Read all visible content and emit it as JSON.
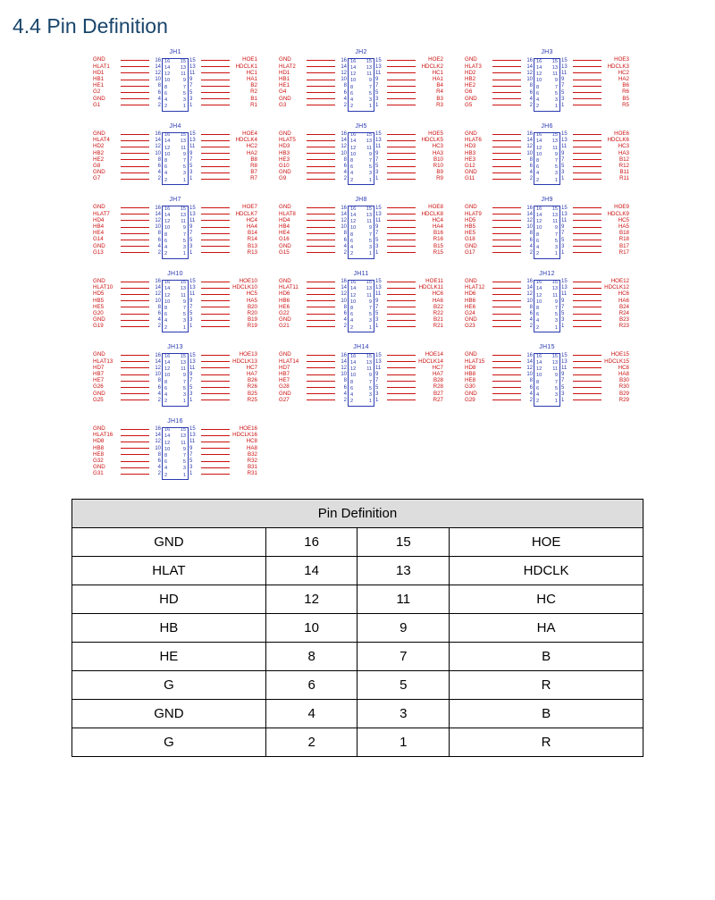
{
  "section_title": "4.4 Pin Definition",
  "left_pins_outer": [
    "16",
    "14",
    "12",
    "10",
    "8",
    "6",
    "4",
    "2"
  ],
  "right_pins_outer": [
    "15",
    "13",
    "11",
    "9",
    "7",
    "5",
    "3",
    "1"
  ],
  "chip_left": [
    "16",
    "14",
    "12",
    "10",
    "8",
    "6",
    "4",
    "2"
  ],
  "chip_right": [
    "15",
    "13",
    "11",
    "9",
    "7",
    "5",
    "3",
    "1"
  ],
  "connectors": [
    {
      "name": "JH1",
      "left": [
        "GND",
        "HLAT1",
        "HD1",
        "HB1",
        "HE1",
        "G2",
        "GND",
        "G1"
      ],
      "right": [
        "HOE1",
        "HDCLK1",
        "HC1",
        "HA1",
        "B2",
        "R2",
        "B1",
        "R1"
      ]
    },
    {
      "name": "JH2",
      "left": [
        "GND",
        "HLAT2",
        "HD1",
        "HB1",
        "HE1",
        "G4",
        "GND",
        "G3"
      ],
      "right": [
        "HOE2",
        "HDCLK2",
        "HC1",
        "HA1",
        "B4",
        "R4",
        "B3",
        "R3"
      ]
    },
    {
      "name": "JH3",
      "left": [
        "GND",
        "HLAT3",
        "HD2",
        "HB2",
        "HE2",
        "G6",
        "GND",
        "G5"
      ],
      "right": [
        "HOE3",
        "HDCLK3",
        "HC2",
        "HA2",
        "B6",
        "R6",
        "B5",
        "R5"
      ]
    },
    {
      "name": "JH4",
      "left": [
        "GND",
        "HLAT4",
        "HD2",
        "HB2",
        "HE2",
        "G8",
        "GND",
        "G7"
      ],
      "right": [
        "HOE4",
        "HDCLK4",
        "HC2",
        "HA2",
        "B8",
        "R8",
        "B7",
        "R7"
      ]
    },
    {
      "name": "JH5",
      "left": [
        "GND",
        "HLAT5",
        "HD3",
        "HB3",
        "HE3",
        "G10",
        "GND",
        "G9"
      ],
      "right": [
        "HOE5",
        "HDCLK5",
        "HC3",
        "HA3",
        "B10",
        "R10",
        "B9",
        "R9"
      ]
    },
    {
      "name": "JH6",
      "left": [
        "GND",
        "HLAT6",
        "HD3",
        "HB3",
        "HE3",
        "G12",
        "GND",
        "G11"
      ],
      "right": [
        "HOE6",
        "HDCLK6",
        "HC3",
        "HA3",
        "B12",
        "R12",
        "B11",
        "R11"
      ]
    },
    {
      "name": "JH7",
      "left": [
        "GND",
        "HLAT7",
        "HD4",
        "HB4",
        "HE4",
        "G14",
        "GND",
        "G13"
      ],
      "right": [
        "HOE7",
        "HDCLK7",
        "HC4",
        "HA4",
        "B14",
        "R14",
        "B13",
        "R13"
      ]
    },
    {
      "name": "JH8",
      "left": [
        "GND",
        "HLAT8",
        "HD4",
        "HB4",
        "HE4",
        "G16",
        "GND",
        "G15"
      ],
      "right": [
        "HOE8",
        "HDCLK8",
        "HC4",
        "HA4",
        "B16",
        "R16",
        "B15",
        "R15"
      ]
    },
    {
      "name": "JH9",
      "left": [
        "GND",
        "HLAT9",
        "HD5",
        "HB5",
        "HE5",
        "G18",
        "GND",
        "G17"
      ],
      "right": [
        "HOE9",
        "HDCLK9",
        "HC5",
        "HA5",
        "B18",
        "R18",
        "B17",
        "R17"
      ]
    },
    {
      "name": "JH10",
      "left": [
        "GND",
        "HLAT10",
        "HD5",
        "HB5",
        "HE5",
        "G20",
        "GND",
        "G19"
      ],
      "right": [
        "HOE10",
        "HDCLK10",
        "HC5",
        "HA5",
        "B20",
        "R20",
        "B19",
        "R19"
      ]
    },
    {
      "name": "JH11",
      "left": [
        "GND",
        "HLAT11",
        "HD6",
        "HB6",
        "HE6",
        "G22",
        "GND",
        "G21"
      ],
      "right": [
        "HOE11",
        "HDCLK11",
        "HC6",
        "HA6",
        "B22",
        "R22",
        "B21",
        "R21"
      ]
    },
    {
      "name": "JH12",
      "left": [
        "GND",
        "HLAT12",
        "HD6",
        "HB6",
        "HE6",
        "G24",
        "GND",
        "G23"
      ],
      "right": [
        "HOE12",
        "HDCLK12",
        "HC6",
        "HA6",
        "B24",
        "R24",
        "B23",
        "R23"
      ]
    },
    {
      "name": "JH13",
      "left": [
        "GND",
        "HLAT13",
        "HD7",
        "HB7",
        "HE7",
        "G26",
        "GND",
        "G25"
      ],
      "right": [
        "HOE13",
        "HDCLK13",
        "HC7",
        "HA7",
        "B26",
        "R26",
        "B25",
        "R25"
      ]
    },
    {
      "name": "JH14",
      "left": [
        "GND",
        "HLAT14",
        "HD7",
        "HB7",
        "HE7",
        "G28",
        "GND",
        "G27"
      ],
      "right": [
        "HOE14",
        "HDCLK14",
        "HC7",
        "HA7",
        "B28",
        "R28",
        "B27",
        "R27"
      ]
    },
    {
      "name": "JH15",
      "left": [
        "GND",
        "HLAT15",
        "HD8",
        "HB8",
        "HE8",
        "G30",
        "GND",
        "G29"
      ],
      "right": [
        "HOE15",
        "HDCLK15",
        "HC8",
        "HA8",
        "B30",
        "R30",
        "B29",
        "R29"
      ]
    },
    {
      "name": "JH16",
      "left": [
        "GND",
        "HLAT16",
        "HD8",
        "HB8",
        "HE8",
        "G32",
        "GND",
        "G31"
      ],
      "right": [
        "HOE16",
        "HDCLK16",
        "HC8",
        "HA8",
        "B32",
        "R32",
        "B31",
        "R31"
      ]
    }
  ],
  "table": {
    "header": "Pin Definition",
    "rows": [
      [
        "GND",
        "16",
        "15",
        "HOE"
      ],
      [
        "HLAT",
        "14",
        "13",
        "HDCLK"
      ],
      [
        "HD",
        "12",
        "11",
        "HC"
      ],
      [
        "HB",
        "10",
        "9",
        "HA"
      ],
      [
        "HE",
        "8",
        "7",
        "B"
      ],
      [
        "G",
        "6",
        "5",
        "R"
      ],
      [
        "GND",
        "4",
        "3",
        "B"
      ],
      [
        "G",
        "2",
        "1",
        "R"
      ]
    ]
  },
  "colors": {
    "heading": "#19456b",
    "signal": "#cc1111",
    "chip": "#2a3aaf",
    "table_header_bg": "#dddddd",
    "border": "#000000"
  }
}
